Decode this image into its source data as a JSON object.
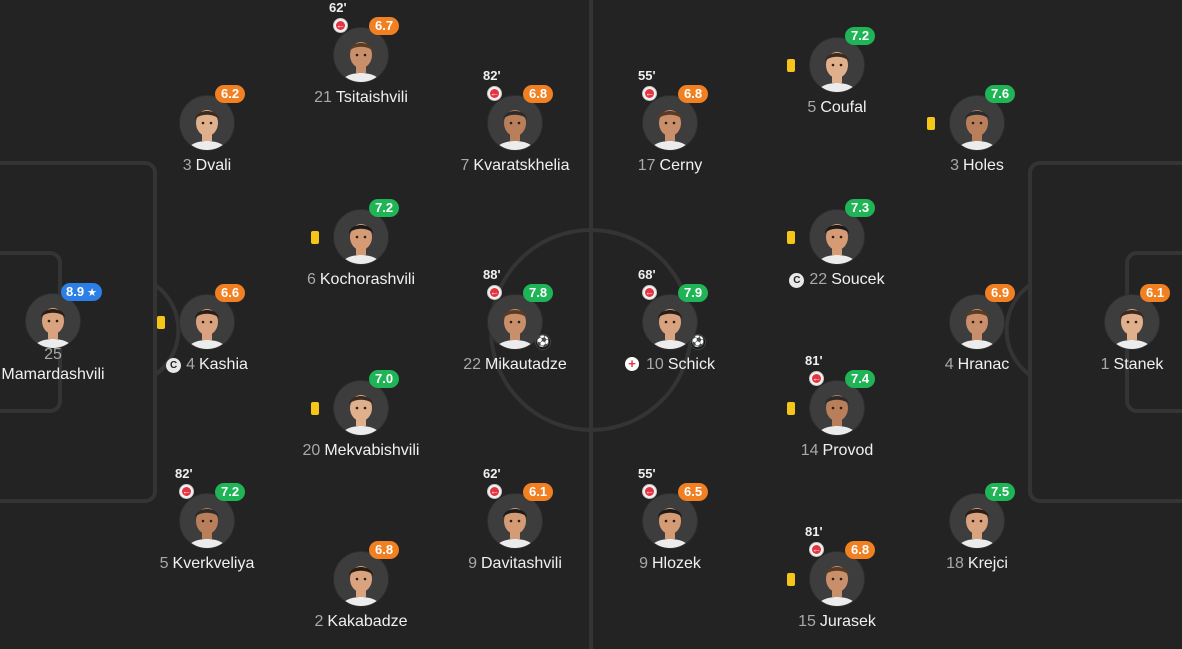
{
  "colors": {
    "background": "#232323",
    "pitch_lines": "#343434",
    "rating_mid": "#f08022",
    "rating_good": "#1fb455",
    "rating_best": "#2b7fe6",
    "sub_off": "#e3343f",
    "yellow_card": "#f5c518"
  },
  "icons": {
    "substitution": "substitution-off-icon",
    "yellow_card": "yellow-card-icon",
    "goal": "football-goal-icon",
    "captain": "captain-icon",
    "injury": "injury-icon",
    "star": "star-icon"
  },
  "players": [
    {
      "id": "mamardashvili",
      "number": "25",
      "name": "Mamardashvili",
      "rating": "8.9",
      "rating_class": "best",
      "star": true
    },
    {
      "id": "tsitaishvili",
      "number": "21",
      "name": "Tsitaishvili",
      "rating": "6.7",
      "rating_class": "mid",
      "sub": "62'"
    },
    {
      "id": "dvali",
      "number": "3",
      "name": "Dvali",
      "rating": "6.2",
      "rating_class": "mid"
    },
    {
      "id": "kvaratskhelia",
      "number": "7",
      "name": "Kvaratskhelia",
      "rating": "6.8",
      "rating_class": "mid",
      "sub": "82'"
    },
    {
      "id": "kochorashvili",
      "number": "6",
      "name": "Kochorashvili",
      "rating": "7.2",
      "rating_class": "good",
      "yellow": true
    },
    {
      "id": "kashia",
      "number": "4",
      "name": "Kashia",
      "rating": "6.6",
      "rating_class": "mid",
      "yellow": true,
      "captain": true
    },
    {
      "id": "mikautadze",
      "number": "22",
      "name": "Mikautadze",
      "rating": "7.8",
      "rating_class": "good",
      "sub": "88'",
      "goal": true
    },
    {
      "id": "mekvabishvili",
      "number": "20",
      "name": "Mekvabishvili",
      "rating": "7.0",
      "rating_class": "good",
      "yellow": true
    },
    {
      "id": "kverkveliya",
      "number": "5",
      "name": "Kverkveliya",
      "rating": "7.2",
      "rating_class": "good",
      "sub": "82'"
    },
    {
      "id": "davitashvili",
      "number": "9",
      "name": "Davitashvili",
      "rating": "6.1",
      "rating_class": "mid",
      "sub": "62'"
    },
    {
      "id": "kakabadze",
      "number": "2",
      "name": "Kakabadze",
      "rating": "6.8",
      "rating_class": "mid"
    },
    {
      "id": "cerny",
      "number": "17",
      "name": "Cerny",
      "rating": "6.8",
      "rating_class": "mid",
      "sub": "55'"
    },
    {
      "id": "coufal",
      "number": "5",
      "name": "Coufal",
      "rating": "7.2",
      "rating_class": "good",
      "yellow": true
    },
    {
      "id": "holes",
      "number": "3",
      "name": "Holes",
      "rating": "7.6",
      "rating_class": "good",
      "yellow": true
    },
    {
      "id": "soucek",
      "number": "22",
      "name": "Soucek",
      "rating": "7.3",
      "rating_class": "good",
      "yellow": true,
      "captain": true
    },
    {
      "id": "schick",
      "number": "10",
      "name": "Schick",
      "rating": "7.9",
      "rating_class": "good",
      "sub": "68'",
      "goal": true,
      "injury": true
    },
    {
      "id": "hranac",
      "number": "4",
      "name": "Hranac",
      "rating": "6.9",
      "rating_class": "mid"
    },
    {
      "id": "stanek",
      "number": "1",
      "name": "Stanek",
      "rating": "6.1",
      "rating_class": "mid"
    },
    {
      "id": "provod",
      "number": "14",
      "name": "Provod",
      "rating": "7.4",
      "rating_class": "good",
      "sub": "81'",
      "yellow": true
    },
    {
      "id": "hlozek",
      "number": "9",
      "name": "Hlozek",
      "rating": "6.5",
      "rating_class": "mid",
      "sub": "55'"
    },
    {
      "id": "krejci",
      "number": "18",
      "name": "Krejci",
      "rating": "7.5",
      "rating_class": "good"
    },
    {
      "id": "jurasek",
      "number": "15",
      "name": "Jurasek",
      "rating": "6.8",
      "rating_class": "mid",
      "sub": "81'",
      "yellow": true
    }
  ]
}
